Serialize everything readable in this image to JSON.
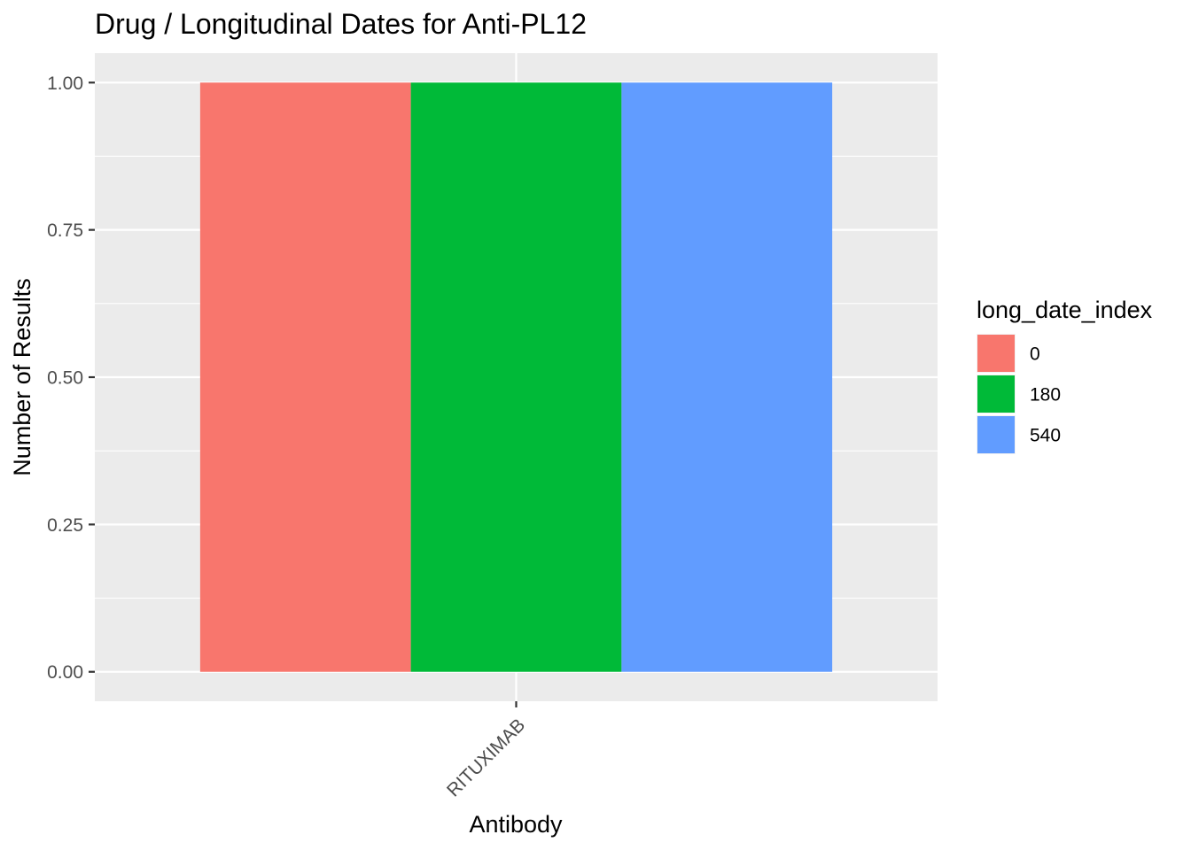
{
  "chart_data": {
    "type": "bar",
    "title": "Drug / Longitudinal Dates for Anti-PL12",
    "xlabel": "Antibody",
    "ylabel": "Number of Results",
    "categories": [
      "RITUXIMAB"
    ],
    "series": [
      {
        "name": "0",
        "values": [
          1
        ],
        "color": "#F8766D"
      },
      {
        "name": "180",
        "values": [
          1
        ],
        "color": "#00BA38"
      },
      {
        "name": "540",
        "values": [
          1
        ],
        "color": "#619CFF"
      }
    ],
    "position": "dodge",
    "ylim": [
      -0.05,
      1.05
    ],
    "yticks": [
      0,
      0.25,
      0.5,
      0.75,
      1
    ],
    "ytick_labels": [
      "0.00",
      "0.25",
      "0.50",
      "0.75",
      "1.00"
    ],
    "grid": true,
    "panel_background": "#EBEBEB",
    "grid_color": "#FFFFFF",
    "x_tick_label_rotation_deg": 45,
    "legend": {
      "title": "long_date_index",
      "placement": "right"
    }
  }
}
